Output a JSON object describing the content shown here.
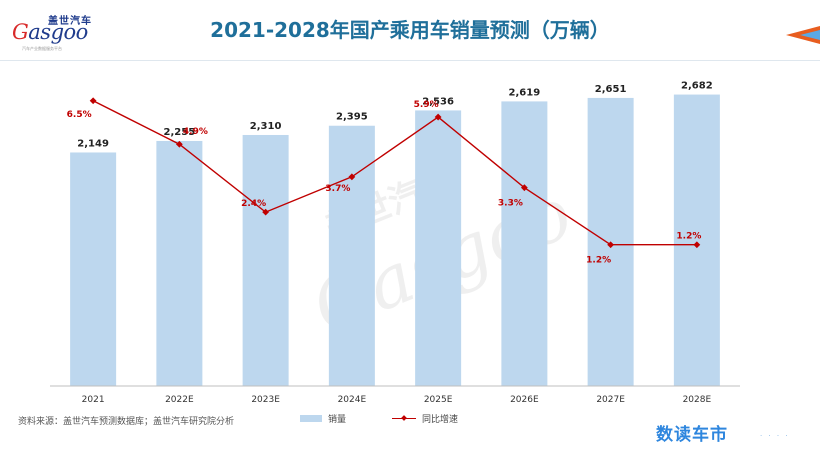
{
  "header": {
    "title": "2021-2028年国产乘用车销量预测（万辆）",
    "logo_cn": "盖世汽车",
    "logo_en_g": "G",
    "logo_en_rest": "asgoo",
    "logo_tagline": "汽车产业数据服务平台"
  },
  "footer": {
    "source": "资料来源：盖世汽车预测数据库；盖世汽车研究院分析",
    "brand": "数读车市",
    "brand_dots": "· · · ·"
  },
  "colors": {
    "bar": "#bdd7ee",
    "line": "#c00000",
    "title": "#1f6f9a",
    "accent": "#e85d1f"
  },
  "chart_data": {
    "type": "bar",
    "categories": [
      "2021",
      "2022E",
      "2023E",
      "2024E",
      "2025E",
      "2026E",
      "2027E",
      "2028E"
    ],
    "series": [
      {
        "name": "销量",
        "type": "bar",
        "values": [
          2149,
          2255,
          2310,
          2395,
          2536,
          2619,
          2651,
          2682
        ],
        "labels": [
          "2,149",
          "2,255",
          "2,310",
          "2,395",
          "2,536",
          "2,619",
          "2,651",
          "2,682"
        ]
      },
      {
        "name": "同比增速",
        "type": "line",
        "values": [
          6.5,
          4.9,
          2.4,
          3.7,
          5.9,
          3.3,
          1.2,
          1.2
        ],
        "labels": [
          "6.5%",
          "4.9%",
          "2.4%",
          "3.7%",
          "5.9%",
          "3.3%",
          "1.2%",
          "1.2%"
        ]
      }
    ],
    "ylim": [
      0,
      3000
    ],
    "y2lim": [
      -4,
      8
    ],
    "legend": "bottom",
    "grid": false
  }
}
